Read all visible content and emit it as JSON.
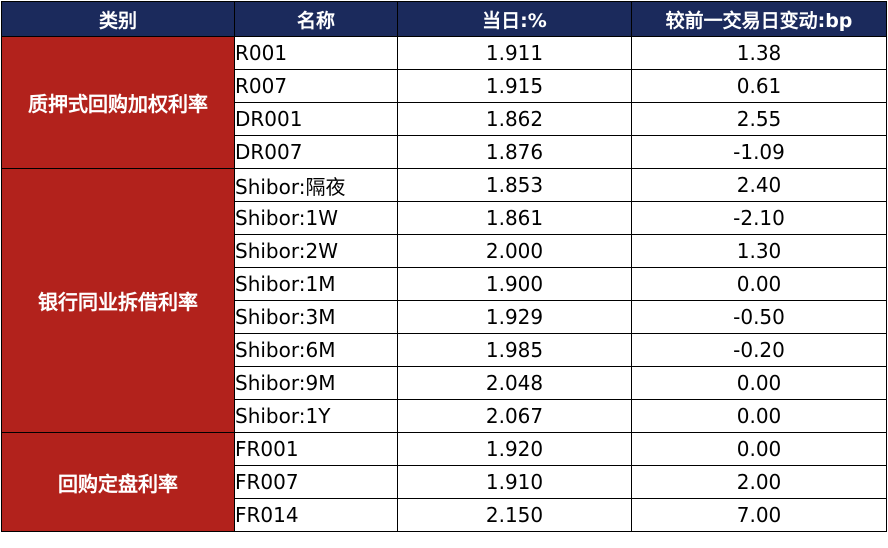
{
  "colors": {
    "header_bg": "#1b2a5c",
    "category_bg": "#b2221c",
    "text": "#000000",
    "header_text": "#ffffff"
  },
  "headers": {
    "category": "类别",
    "name": "名称",
    "today": "当日:%",
    "change": "较前一交易日变动:bp"
  },
  "groups": [
    {
      "category": "质押式回购加权利率",
      "rows": [
        {
          "name": "R001",
          "today": "1.911",
          "change": "1.38"
        },
        {
          "name": "R007",
          "today": "1.915",
          "change": "0.61"
        },
        {
          "name": "DR001",
          "today": "1.862",
          "change": "2.55"
        },
        {
          "name": "DR007",
          "today": "1.876",
          "change": "-1.09"
        }
      ]
    },
    {
      "category": "银行同业拆借利率",
      "rows": [
        {
          "name": "Shibor:隔夜",
          "today": "1.853",
          "change": "2.40"
        },
        {
          "name": "Shibor:1W",
          "today": "1.861",
          "change": "-2.10"
        },
        {
          "name": "Shibor:2W",
          "today": "2.000",
          "change": "1.30"
        },
        {
          "name": "Shibor:1M",
          "today": "1.900",
          "change": "0.00"
        },
        {
          "name": "Shibor:3M",
          "today": "1.929",
          "change": "-0.50"
        },
        {
          "name": "Shibor:6M",
          "today": "1.985",
          "change": "-0.20"
        },
        {
          "name": "Shibor:9M",
          "today": "2.048",
          "change": "0.00"
        },
        {
          "name": "Shibor:1Y",
          "today": "2.067",
          "change": "0.00"
        }
      ]
    },
    {
      "category": "回购定盘利率",
      "rows": [
        {
          "name": "FR001",
          "today": "1.920",
          "change": "0.00"
        },
        {
          "name": "FR007",
          "today": "1.910",
          "change": "2.00"
        },
        {
          "name": "FR014",
          "today": "2.150",
          "change": "7.00"
        }
      ]
    }
  ]
}
